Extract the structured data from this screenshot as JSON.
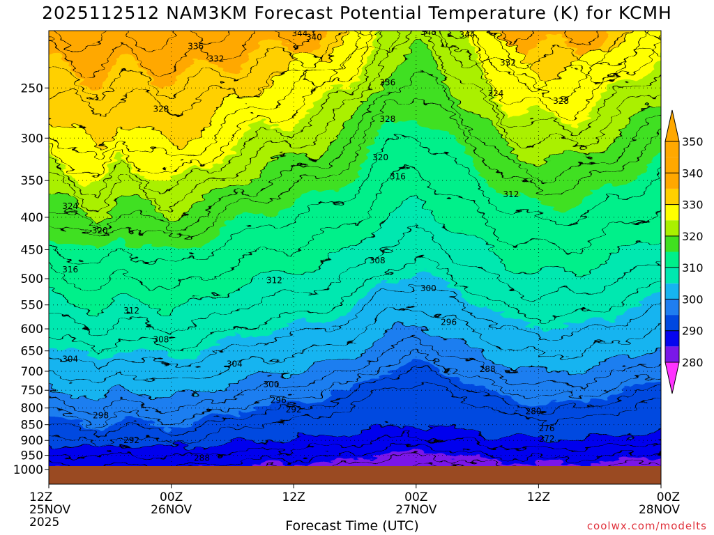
{
  "chart_data": {
    "type": "heatmap",
    "title": "2025112512 NAM3KM Forecast Potential Temperature (K) for KCMH",
    "xlabel": "Forecast Time (UTC)",
    "ylabel": "",
    "y_ticks": [
      "250",
      "300",
      "350",
      "400",
      "450",
      "500",
      "550",
      "600",
      "650",
      "700",
      "750",
      "800",
      "850",
      "900",
      "950",
      "1000"
    ],
    "y_values": [
      250,
      300,
      350,
      400,
      450,
      500,
      550,
      600,
      650,
      700,
      750,
      800,
      850,
      900,
      950,
      1000
    ],
    "y_scale": "pressure (log), inverted",
    "x_ticks": [
      {
        "hour": 0,
        "lines": [
          "12Z",
          "25NOV",
          "2025"
        ]
      },
      {
        "hour": 12,
        "lines": [
          "00Z",
          "26NOV"
        ]
      },
      {
        "hour": 24,
        "lines": [
          "12Z"
        ]
      },
      {
        "hour": 36,
        "lines": [
          "00Z",
          "27NOV"
        ]
      },
      {
        "hour": 48,
        "lines": [
          "12Z"
        ]
      },
      {
        "hour": 60,
        "lines": [
          "00Z",
          "28NOV"
        ]
      }
    ],
    "colorbar": {
      "labels": [
        "280",
        "290",
        "300",
        "310",
        "320",
        "330",
        "340",
        "350"
      ],
      "levels": [
        280,
        290,
        300,
        310,
        320,
        330,
        340,
        350
      ],
      "colors": [
        "#ff33ff",
        "#bb00ff",
        "#7a18e8",
        "#0606ee",
        "#0048e0",
        "#1f7ef0",
        "#16b4f0",
        "#00e8b0",
        "#00f08a",
        "#40e020",
        "#aaf000",
        "#ffff00",
        "#ffd000",
        "#ffa800"
      ],
      "extend": "both"
    },
    "grid": true,
    "contour_labels": [
      {
        "text": "336",
        "h": 14.4,
        "p": 215
      },
      {
        "text": "332",
        "h": 16.4,
        "p": 225
      },
      {
        "text": "344",
        "h": 24.6,
        "p": 205
      },
      {
        "text": "340",
        "h": 26.0,
        "p": 208
      },
      {
        "text": "348",
        "h": 37.2,
        "p": 204
      },
      {
        "text": "344",
        "h": 41.0,
        "p": 206
      },
      {
        "text": "336",
        "h": 33.2,
        "p": 245
      },
      {
        "text": "332",
        "h": 45.0,
        "p": 228
      },
      {
        "text": "324",
        "h": 43.8,
        "p": 255
      },
      {
        "text": "328",
        "h": 50.2,
        "p": 262
      },
      {
        "text": "328",
        "h": 11.0,
        "p": 270
      },
      {
        "text": "328",
        "h": 33.2,
        "p": 280
      },
      {
        "text": "320",
        "h": 32.5,
        "p": 322
      },
      {
        "text": "316",
        "h": 34.2,
        "p": 345
      },
      {
        "text": "312",
        "h": 45.3,
        "p": 368
      },
      {
        "text": "324",
        "h": 2.1,
        "p": 384
      },
      {
        "text": "320",
        "h": 5.0,
        "p": 420
      },
      {
        "text": "308",
        "h": 32.2,
        "p": 468
      },
      {
        "text": "316",
        "h": 2.1,
        "p": 484
      },
      {
        "text": "312",
        "h": 22.1,
        "p": 503
      },
      {
        "text": "300",
        "h": 37.2,
        "p": 518
      },
      {
        "text": "312",
        "h": 8.1,
        "p": 562
      },
      {
        "text": "296",
        "h": 39.2,
        "p": 586
      },
      {
        "text": "308",
        "h": 11.0,
        "p": 624
      },
      {
        "text": "304",
        "h": 2.1,
        "p": 670
      },
      {
        "text": "304",
        "h": 18.2,
        "p": 682
      },
      {
        "text": "288",
        "h": 43.0,
        "p": 695
      },
      {
        "text": "300",
        "h": 21.8,
        "p": 735
      },
      {
        "text": "296",
        "h": 22.5,
        "p": 778
      },
      {
        "text": "292",
        "h": 24.0,
        "p": 805
      },
      {
        "text": "280",
        "h": 47.5,
        "p": 810
      },
      {
        "text": "298",
        "h": 5.1,
        "p": 822
      },
      {
        "text": "276",
        "h": 48.8,
        "p": 862
      },
      {
        "text": "272",
        "h": 48.8,
        "p": 895
      },
      {
        "text": "292",
        "h": 8.1,
        "p": 900
      },
      {
        "text": "288",
        "h": 15.0,
        "p": 960
      }
    ]
  },
  "credit": "coolwx.com/modelts"
}
